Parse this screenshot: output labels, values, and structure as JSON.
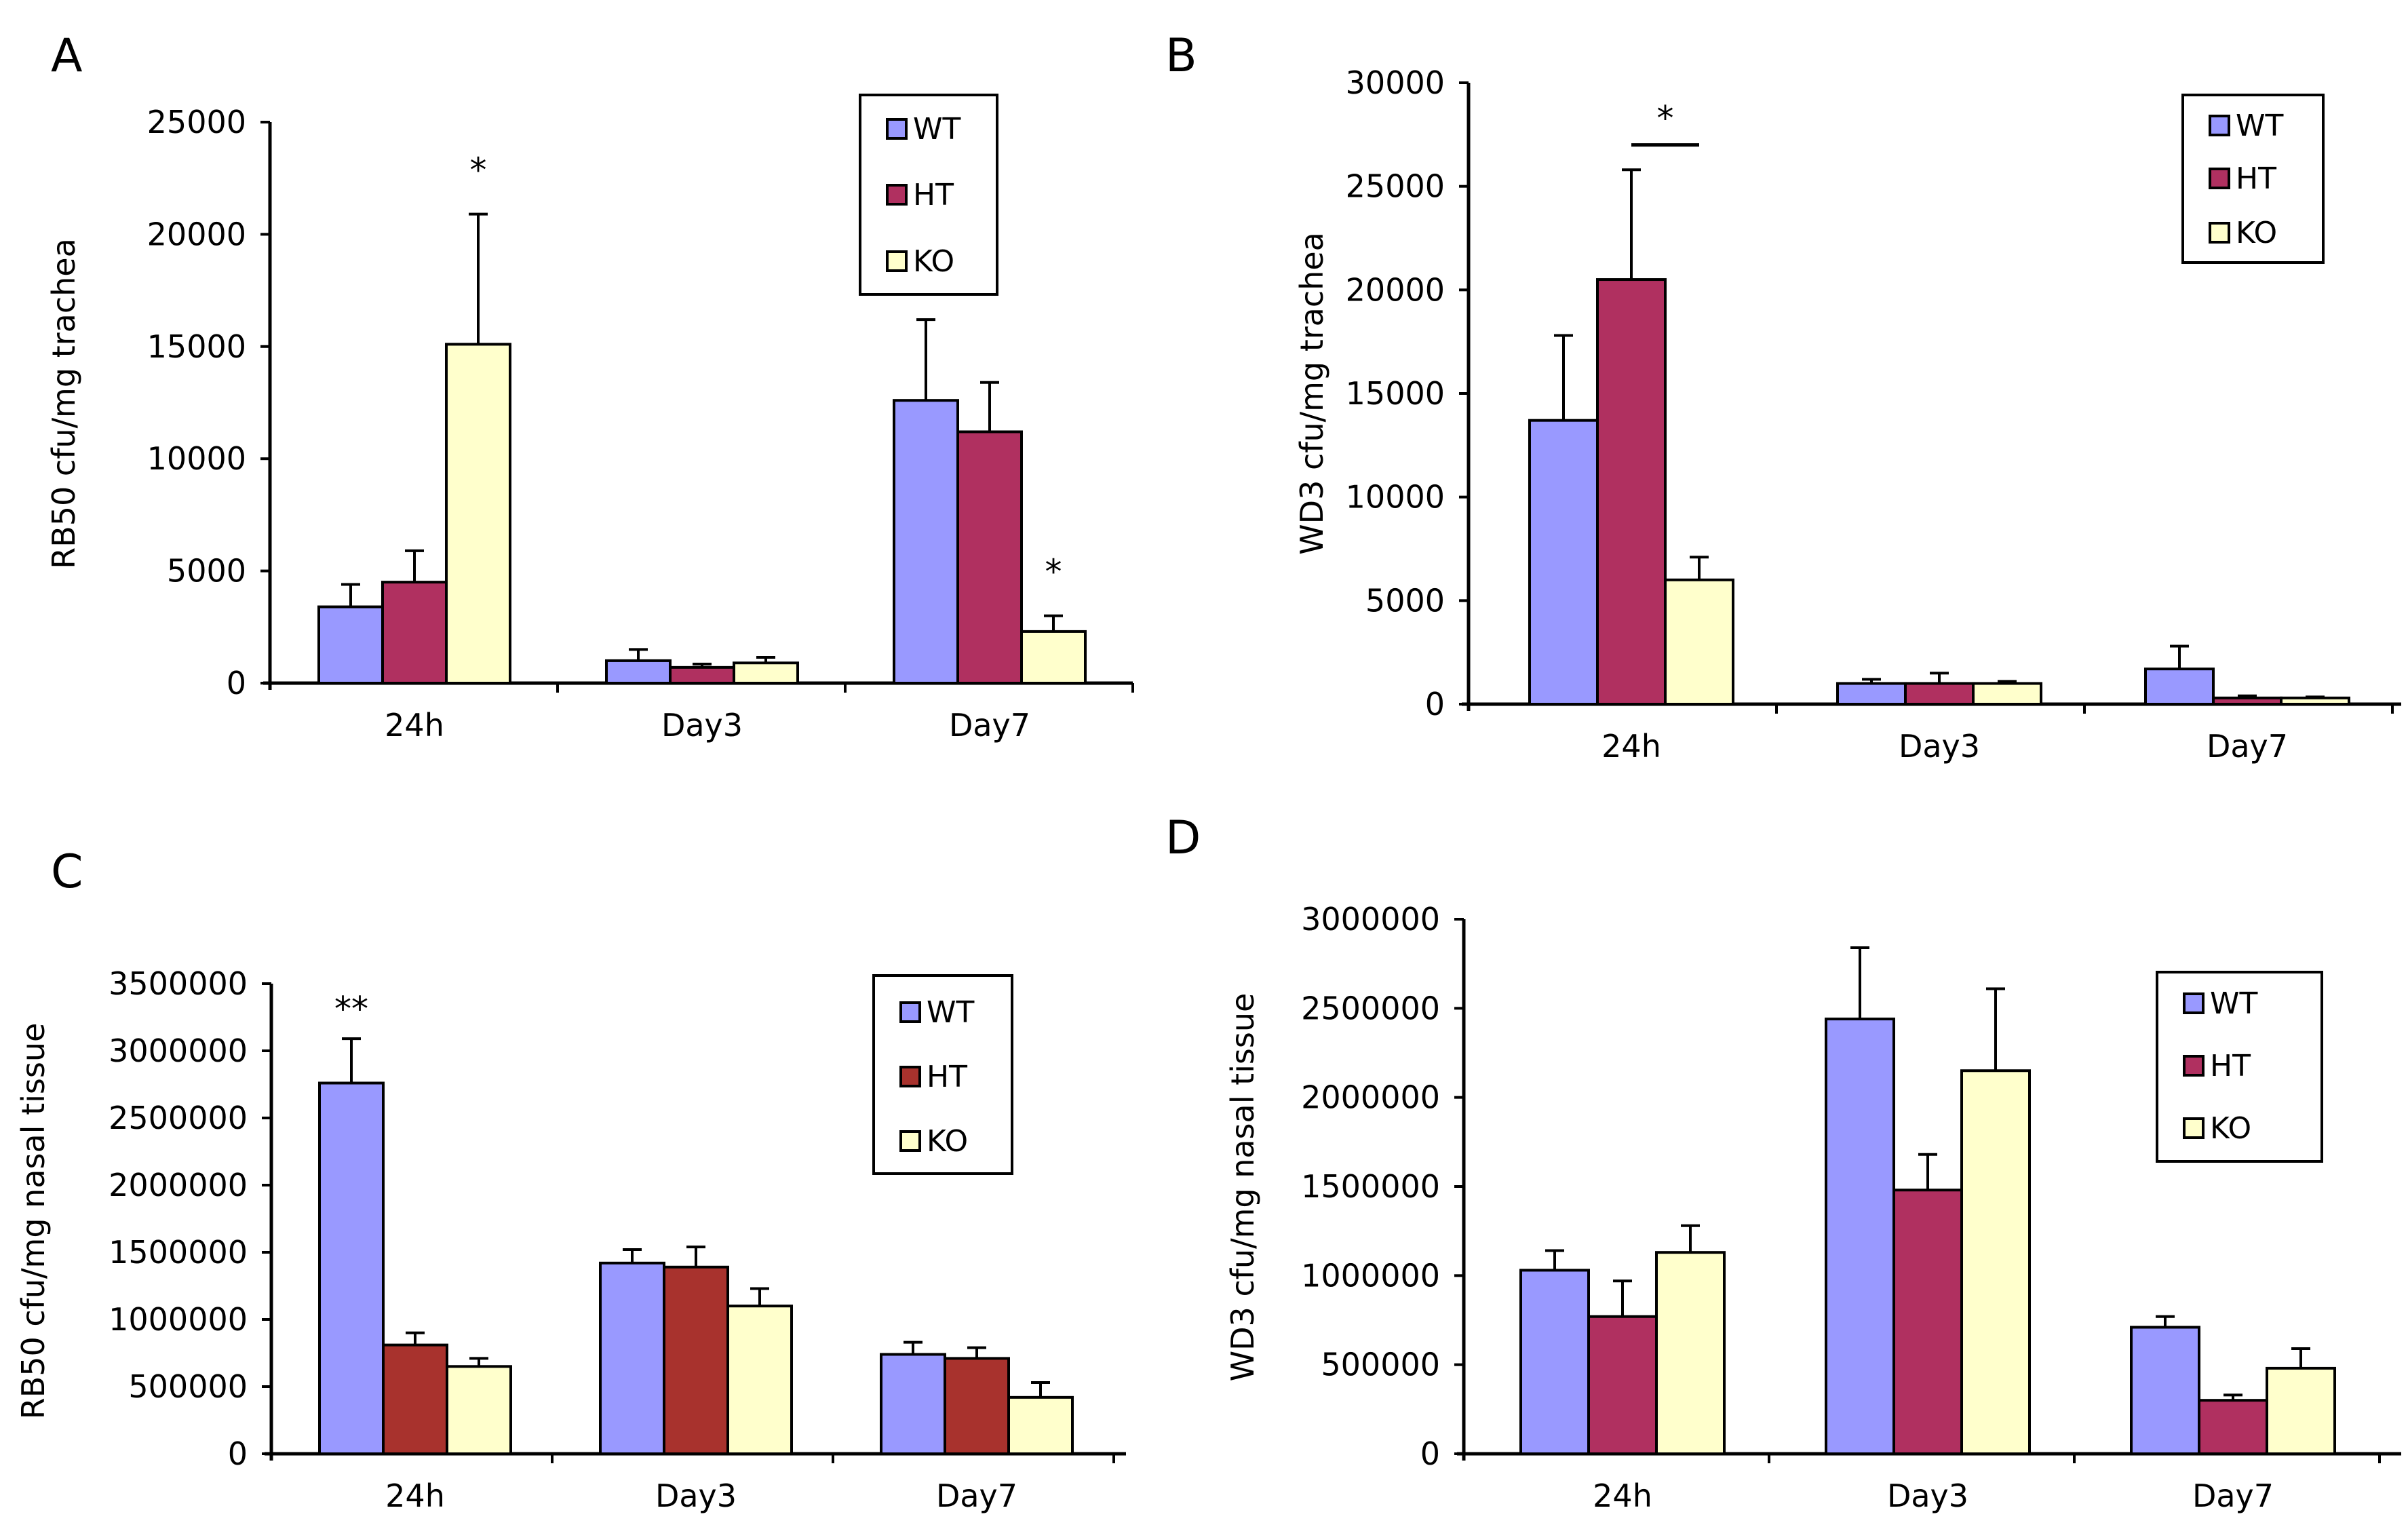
{
  "colors": {
    "WT": "#9999ff",
    "HT_A": "#b03060",
    "HT_B": "#b03060",
    "HT_C": "#a8322d",
    "HT_D": "#b03060",
    "KO": "#ffffcc",
    "axis": "#000000"
  },
  "chart_data": [
    {
      "panel": "A",
      "type": "bar",
      "ylabel": "RB50 cfu/mg trachea",
      "ylim": [
        0,
        25000
      ],
      "yticks": [
        0,
        5000,
        10000,
        15000,
        20000,
        25000
      ],
      "ytick_labels": [
        "0",
        "5000",
        "10000",
        "15000",
        "20000",
        "25000"
      ],
      "categories": [
        "24h",
        "Day3",
        "Day7"
      ],
      "series": [
        {
          "name": "WT",
          "values": [
            3400,
            1000,
            12600
          ],
          "errors": [
            1000,
            500,
            3600
          ]
        },
        {
          "name": "HT",
          "values": [
            4500,
            700,
            11200
          ],
          "errors": [
            1400,
            150,
            2200
          ]
        },
        {
          "name": "KO",
          "values": [
            15100,
            900,
            2300
          ],
          "errors": [
            5800,
            250,
            700
          ]
        }
      ],
      "legend": [
        "WT",
        "HT",
        "KO"
      ],
      "annotations": [
        {
          "text": "*",
          "category": 0,
          "series": 2,
          "value": 22800
        },
        {
          "text": "*",
          "category": 2,
          "series": 2,
          "value": 4900
        }
      ]
    },
    {
      "panel": "B",
      "type": "bar",
      "ylabel": "WD3 cfu/mg trachea",
      "ylim": [
        0,
        30000
      ],
      "yticks": [
        0,
        5000,
        10000,
        15000,
        20000,
        25000,
        30000
      ],
      "ytick_labels": [
        "0",
        "5000",
        "10000",
        "15000",
        "20000",
        "25000",
        "30000"
      ],
      "categories": [
        "24h",
        "Day3",
        "Day7"
      ],
      "series": [
        {
          "name": "WT",
          "values": [
            13700,
            1000,
            1700
          ],
          "errors": [
            4100,
            200,
            1100
          ]
        },
        {
          "name": "HT",
          "values": [
            20500,
            1000,
            300
          ],
          "errors": [
            5300,
            500,
            100
          ]
        },
        {
          "name": "KO",
          "values": [
            6000,
            1000,
            300
          ],
          "errors": [
            1100,
            100,
            50
          ]
        }
      ],
      "legend": [
        "WT",
        "HT",
        "KO"
      ],
      "annotations": [
        {
          "text": "*",
          "bracket": [
            1,
            2
          ],
          "category": 0,
          "value": 27000
        }
      ]
    },
    {
      "panel": "C",
      "type": "bar",
      "ylabel": "RB50 cfu/mg nasal tissue",
      "ylim": [
        0,
        3500000
      ],
      "yticks": [
        0,
        500000,
        1000000,
        1500000,
        2000000,
        2500000,
        3000000,
        3500000
      ],
      "ytick_labels": [
        "0",
        "500000",
        "1000000",
        "1500000",
        "2000000",
        "2500000",
        "3000000",
        "3500000"
      ],
      "categories": [
        "24h",
        "Day3",
        "Day7"
      ],
      "series": [
        {
          "name": "WT",
          "values": [
            2760000,
            1420000,
            740000
          ],
          "errors": [
            330000,
            100000,
            90000
          ]
        },
        {
          "name": "HT",
          "values": [
            810000,
            1390000,
            710000
          ],
          "errors": [
            90000,
            150000,
            80000
          ]
        },
        {
          "name": "KO",
          "values": [
            650000,
            1100000,
            420000
          ],
          "errors": [
            60000,
            130000,
            110000
          ]
        }
      ],
      "legend": [
        "WT",
        "HT",
        "KO"
      ],
      "annotations": [
        {
          "text": "**",
          "category": 0,
          "series": 0,
          "value": 3300000
        }
      ]
    },
    {
      "panel": "D",
      "type": "bar",
      "ylabel": "WD3 cfu/mg nasal tissue",
      "ylim": [
        0,
        3000000
      ],
      "yticks": [
        0,
        500000,
        1000000,
        1500000,
        2000000,
        2500000,
        3000000
      ],
      "ytick_labels": [
        "0",
        "500000",
        "1000000",
        "1500000",
        "2000000",
        "2500000",
        "3000000"
      ],
      "categories": [
        "24h",
        "Day3",
        "Day7"
      ],
      "series": [
        {
          "name": "WT",
          "values": [
            1030000,
            2440000,
            710000
          ],
          "errors": [
            110000,
            400000,
            60000
          ]
        },
        {
          "name": "HT",
          "values": [
            770000,
            1480000,
            300000
          ],
          "errors": [
            200000,
            200000,
            30000
          ]
        },
        {
          "name": "KO",
          "values": [
            1130000,
            2150000,
            480000
          ],
          "errors": [
            150000,
            460000,
            110000
          ]
        }
      ],
      "legend": [
        "WT",
        "HT",
        "KO"
      ],
      "annotations": []
    }
  ]
}
